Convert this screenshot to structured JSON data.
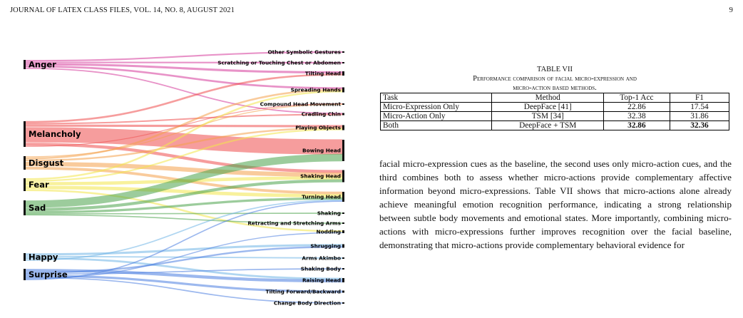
{
  "header": {
    "journal": "JOURNAL OF LATEX CLASS FILES, VOL. 14, NO. 8, AUGUST 2021",
    "page_number": "9"
  },
  "figure": {
    "emotions": [
      {
        "name": "Anger",
        "color": "#d63a9a"
      },
      {
        "name": "Melancholy",
        "color": "#ee4d4d"
      },
      {
        "name": "Disgust",
        "color": "#f4a04a"
      },
      {
        "name": "Fear",
        "color": "#f2e64a"
      },
      {
        "name": "Sad",
        "color": "#4aa34a"
      },
      {
        "name": "Happy",
        "color": "#6fb5e6"
      },
      {
        "name": "Surprise",
        "color": "#4a7ee0"
      }
    ],
    "actions": [
      "Other Symbolic Gestures",
      "Scratching or Touching Chest or Abdomen",
      "Tilting Head",
      "Spreading Hands",
      "Compound Head Movement",
      "Cradling Chin",
      "Playing Objects",
      "Bowing Head",
      "Shaking Head",
      "Turning Head",
      "Shaking",
      "Retracting and Stretching Arms",
      "Nodding",
      "Shrugging",
      "Arms Akimbo",
      "Shaking Body",
      "Raising Head",
      "Tilting Forward/Backward",
      "Change Body Direction"
    ]
  },
  "table": {
    "label": "TABLE VII",
    "caption_line1": "Performance comparison of facial micro-expression and",
    "caption_line2": "micro-action based methods.",
    "headers": [
      "Task",
      "Method",
      "Top-1 Acc",
      "F1"
    ],
    "rows": [
      [
        "Micro-Expression Only",
        "DeepFace [41]",
        "22.86",
        "17.54"
      ],
      [
        "Micro-Action Only",
        "TSM [34]",
        "32.38",
        "31.86"
      ],
      [
        "Both",
        "DeepFace + TSM",
        "32.86",
        "32.36"
      ]
    ]
  },
  "paragraph": "facial micro-expression cues as the baseline, the second uses only micro-action cues, and the third combines both to assess whether micro-actions provide complementary affective information beyond micro-expressions. Table VII shows that micro-actions alone already achieve meaningful emotion recognition performance, indicating a strong relationship between subtle body movements and emotional states. More importantly, combining micro-actions with micro-expressions further improves recognition over the facial baseline, demonstrating that micro-actions provide complementary behavioral evidence for"
}
